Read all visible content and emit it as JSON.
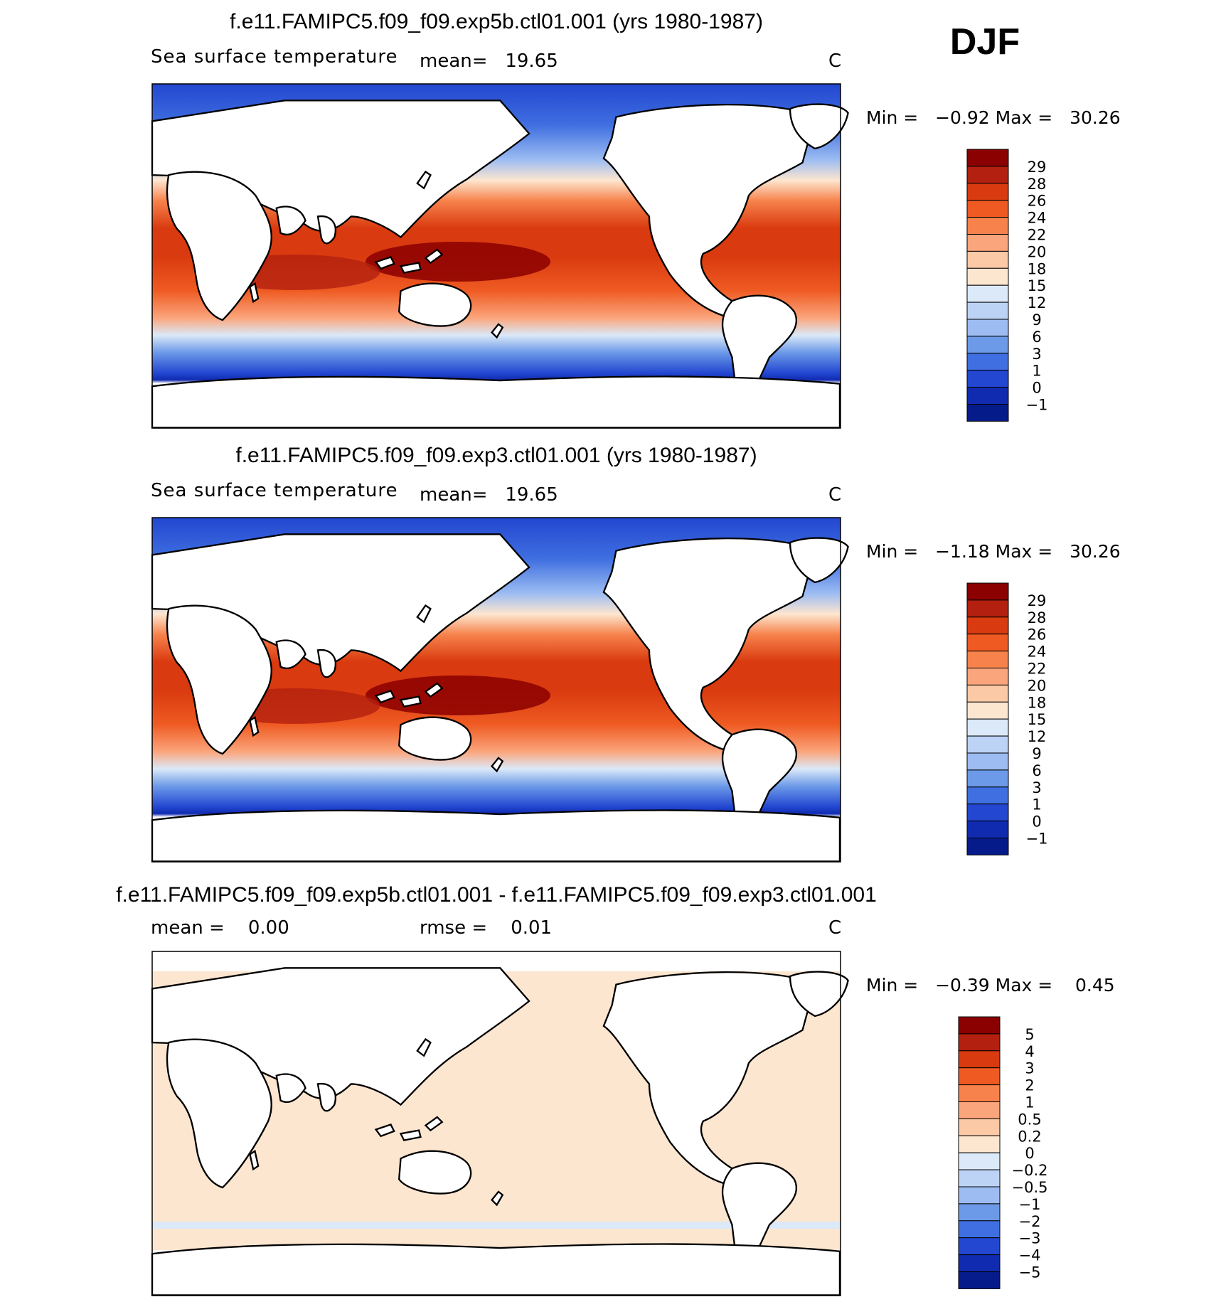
{
  "season": "DJF",
  "panels": [
    {
      "title": "f.e11.FAMIPC5.f09_f09.exp5b.ctl01.001 (yrs 1980-1987)",
      "variable": "Sea surface temperature",
      "stat_text": "mean=   19.65",
      "units": "C",
      "minmax_text": "Min =   −0.92 Max =   30.26"
    },
    {
      "title": "f.e11.FAMIPC5.f09_f09.exp3.ctl01.001 (yrs 1980-1987)",
      "variable": "Sea surface temperature",
      "stat_text": "mean=   19.65",
      "units": "C",
      "minmax_text": "Min =   −1.18 Max =   30.26"
    },
    {
      "title": "f.e11.FAMIPC5.f09_f09.exp5b.ctl01.001 - f.e11.FAMIPC5.f09_f09.exp3.ctl01.001",
      "mean_text": "mean =    0.00",
      "rmse_text": "rmse =    0.01",
      "units": "C",
      "minmax_text": "Min =   −0.39 Max =    0.45"
    }
  ],
  "chart_data": [
    {
      "type": "heatmap",
      "title": "f.e11.FAMIPC5.f09_f09.exp5b.ctl01.001 (yrs 1980-1987)",
      "variable": "Sea surface temperature",
      "units": "C",
      "mean": 19.65,
      "min": -0.92,
      "max": 30.26,
      "colorbar_levels": [
        "29",
        "28",
        "26",
        "24",
        "22",
        "20",
        "18",
        "15",
        "12",
        "9",
        "6",
        "3",
        "1",
        "0",
        "−1"
      ],
      "colorbar_colors": [
        "#8b0000",
        "#b3200f",
        "#d93a0f",
        "#ef5a22",
        "#f7824c",
        "#fba57c",
        "#fcc9a6",
        "#fde6d0",
        "#dbe9f8",
        "#bcd3f6",
        "#9cbcf2",
        "#6d9ae8",
        "#3f6fe0",
        "#2347d1",
        "#102bb0",
        "#061b8a"
      ]
    },
    {
      "type": "heatmap",
      "title": "f.e11.FAMIPC5.f09_f09.exp3.ctl01.001 (yrs 1980-1987)",
      "variable": "Sea surface temperature",
      "units": "C",
      "mean": 19.65,
      "min": -1.18,
      "max": 30.26,
      "colorbar_levels": [
        "29",
        "28",
        "26",
        "24",
        "22",
        "20",
        "18",
        "15",
        "12",
        "9",
        "6",
        "3",
        "1",
        "0",
        "−1"
      ],
      "colorbar_colors": [
        "#8b0000",
        "#b3200f",
        "#d93a0f",
        "#ef5a22",
        "#f7824c",
        "#fba57c",
        "#fcc9a6",
        "#fde6d0",
        "#dbe9f8",
        "#bcd3f6",
        "#9cbcf2",
        "#6d9ae8",
        "#3f6fe0",
        "#2347d1",
        "#102bb0",
        "#061b8a"
      ]
    },
    {
      "type": "heatmap",
      "title": "f.e11.FAMIPC5.f09_f09.exp5b.ctl01.001 - f.e11.FAMIPC5.f09_f09.exp3.ctl01.001",
      "units": "C",
      "mean": 0.0,
      "rmse": 0.01,
      "min": -0.39,
      "max": 0.45,
      "colorbar_levels": [
        "5",
        "4",
        "3",
        "2",
        "1",
        "0.5",
        "0.2",
        "0",
        "−0.2",
        "−0.5",
        "−1",
        "−2",
        "−3",
        "−4",
        "−5"
      ],
      "colorbar_colors": [
        "#8b0000",
        "#b3200f",
        "#d93a0f",
        "#ef5a22",
        "#f7824c",
        "#fba57c",
        "#fcc9a6",
        "#fde6d0",
        "#dbe9f8",
        "#bcd3f6",
        "#9cbcf2",
        "#6d9ae8",
        "#3f6fe0",
        "#2347d1",
        "#102bb0",
        "#061b8a"
      ]
    }
  ]
}
